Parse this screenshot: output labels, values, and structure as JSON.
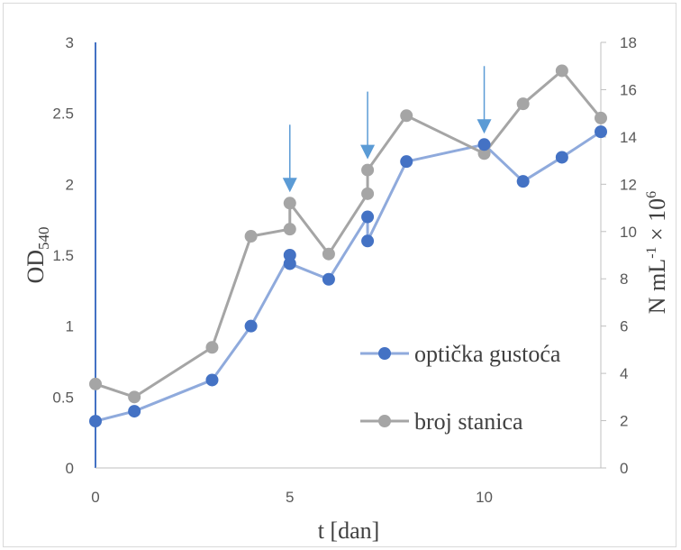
{
  "chart_data": {
    "type": "line",
    "xlabel": "t [dan]",
    "ylabel_left": {
      "main": "OD",
      "sub": "540"
    },
    "ylabel_right": {
      "p1": "N mL",
      "sup1": "-1",
      "p2": " × 10",
      "sup2": "6"
    },
    "xlim": [
      0,
      13
    ],
    "ylim_left": [
      0,
      3
    ],
    "ylim_right": [
      0,
      18
    ],
    "x_ticks": [
      "0",
      "5",
      "10"
    ],
    "x_tick_values": [
      0,
      5,
      10
    ],
    "y_left_ticks": [
      "0",
      "0.5",
      "1",
      "1.5",
      "2",
      "2.5",
      "3"
    ],
    "y_left_tick_values": [
      0,
      0.5,
      1,
      1.5,
      2,
      2.5,
      3
    ],
    "y_right_ticks": [
      "0",
      "2",
      "4",
      "6",
      "8",
      "10",
      "12",
      "14",
      "16",
      "18"
    ],
    "y_right_tick_values": [
      0,
      2,
      4,
      6,
      8,
      10,
      12,
      14,
      16,
      18
    ],
    "grid": false,
    "legend_position": "lower-right",
    "arrows_x": [
      5,
      7,
      10
    ],
    "series": [
      {
        "name": "optička gustoća",
        "axis": "left",
        "color": "#4472c4",
        "line_color": "#8faadc",
        "x": [
          0,
          1,
          3,
          4,
          5,
          5,
          6,
          7,
          7,
          8,
          10,
          11,
          12,
          13
        ],
        "y": [
          0.33,
          0.4,
          0.62,
          1.0,
          1.5,
          1.44,
          1.33,
          1.77,
          1.6,
          2.16,
          2.28,
          2.02,
          2.19,
          2.37
        ]
      },
      {
        "name": "broj stanica",
        "axis": "right",
        "color": "#a5a5a5",
        "line_color": "#a5a5a5",
        "x": [
          0,
          1,
          3,
          4,
          5,
          5,
          6,
          7,
          7,
          8,
          10,
          11,
          12,
          13
        ],
        "y": [
          3.55,
          3.0,
          5.1,
          9.8,
          10.1,
          11.2,
          9.05,
          11.6,
          12.6,
          14.9,
          13.3,
          15.4,
          16.8,
          14.8
        ]
      }
    ]
  }
}
